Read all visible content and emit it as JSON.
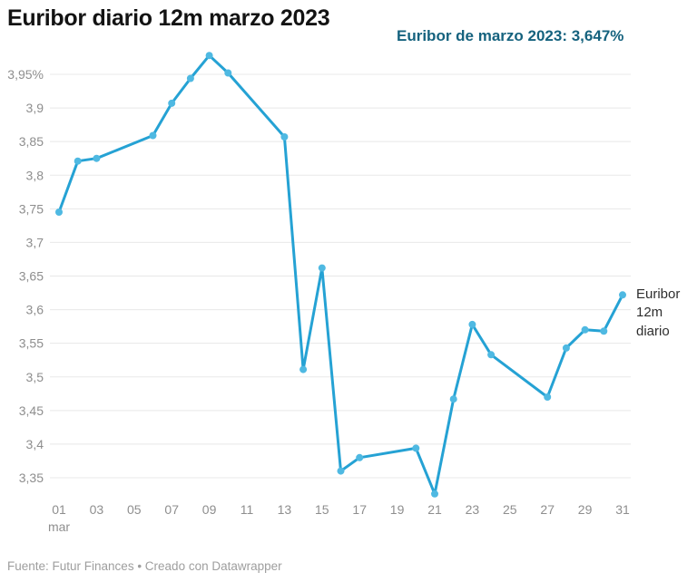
{
  "header": {
    "title": "Euribor diario 12m marzo 2023",
    "annotation": "Euribor de marzo 2023: 3,647%"
  },
  "footer": {
    "text": "Fuente: Futur Finances • Creado con Datawrapper"
  },
  "chart_data": {
    "type": "line",
    "title": "Euribor diario 12m marzo 2023",
    "xlabel": "",
    "ylabel": "",
    "x_unit": "día de marzo 2023",
    "ylim": [
      3.35,
      3.95
    ],
    "xlim": [
      1,
      31
    ],
    "grid": true,
    "legend_position": "inline-right",
    "series": [
      {
        "name": "Euribor 12m diario",
        "x": [
          1,
          2,
          3,
          6,
          7,
          8,
          9,
          10,
          13,
          14,
          15,
          16,
          17,
          20,
          21,
          22,
          23,
          24,
          27,
          28,
          29,
          30,
          31
        ],
        "values": [
          3.745,
          3.821,
          3.825,
          3.859,
          3.907,
          3.944,
          3.978,
          3.952,
          3.857,
          3.511,
          3.662,
          3.36,
          3.38,
          3.394,
          3.326,
          3.467,
          3.578,
          3.533,
          3.47,
          3.543,
          3.57,
          3.568,
          3.622
        ]
      }
    ],
    "monthly_average_annotation": "Euribor de marzo 2023: 3,647%",
    "y_ticks": [
      {
        "v": 3.95,
        "label": "3,95%"
      },
      {
        "v": 3.9,
        "label": "3,9"
      },
      {
        "v": 3.85,
        "label": "3,85"
      },
      {
        "v": 3.8,
        "label": "3,8"
      },
      {
        "v": 3.75,
        "label": "3,75"
      },
      {
        "v": 3.7,
        "label": "3,7"
      },
      {
        "v": 3.65,
        "label": "3,65"
      },
      {
        "v": 3.6,
        "label": "3,6"
      },
      {
        "v": 3.55,
        "label": "3,55"
      },
      {
        "v": 3.5,
        "label": "3,5"
      },
      {
        "v": 3.45,
        "label": "3,45"
      },
      {
        "v": 3.4,
        "label": "3,4"
      },
      {
        "v": 3.35,
        "label": "3,35"
      }
    ],
    "x_ticks": [
      {
        "v": 1,
        "label": "01",
        "sub": "mar"
      },
      {
        "v": 3,
        "label": "03"
      },
      {
        "v": 5,
        "label": "05"
      },
      {
        "v": 7,
        "label": "07"
      },
      {
        "v": 9,
        "label": "09"
      },
      {
        "v": 11,
        "label": "11"
      },
      {
        "v": 13,
        "label": "13"
      },
      {
        "v": 15,
        "label": "15"
      },
      {
        "v": 17,
        "label": "17"
      },
      {
        "v": 19,
        "label": "19"
      },
      {
        "v": 21,
        "label": "21"
      },
      {
        "v": 23,
        "label": "23"
      },
      {
        "v": 25,
        "label": "25"
      },
      {
        "v": 27,
        "label": "27"
      },
      {
        "v": 29,
        "label": "29"
      },
      {
        "v": 31,
        "label": "31"
      }
    ],
    "colors": {
      "line": "#25a2d4",
      "dot": "#4fb9e2",
      "annotation": "#15627e",
      "grid": "#e8e8e8",
      "tick_text": "#8e8e8e",
      "title_text": "#131313",
      "footer_text": "#9e9e9e",
      "series_label_text": "#2e2e2e"
    }
  }
}
